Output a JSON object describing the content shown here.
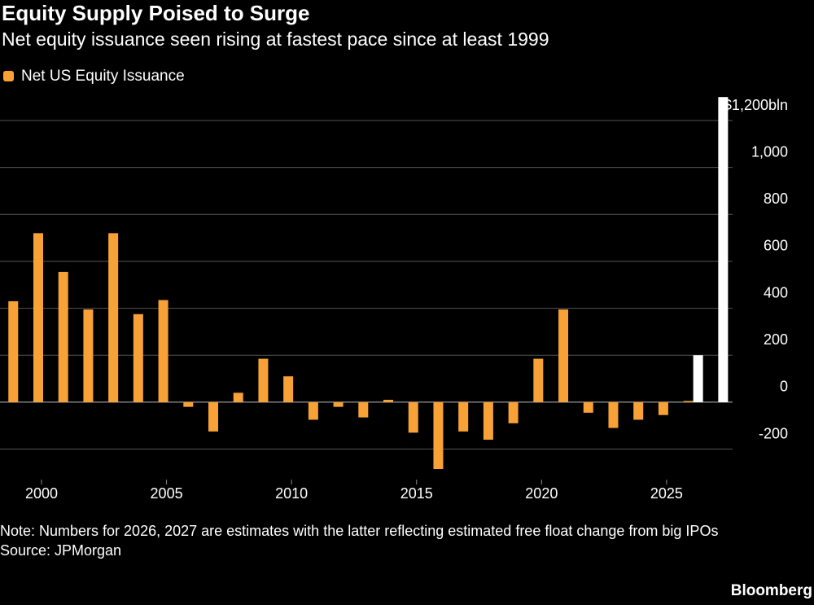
{
  "chart_data": {
    "type": "bar",
    "title": "Equity Supply Poised to Surge",
    "subtitle": "Net equity issuance seen rising at fastest pace since at least 1999",
    "x": [
      1999,
      2000,
      2001,
      2002,
      2003,
      2004,
      2005,
      2006,
      2007,
      2008,
      2009,
      2010,
      2011,
      2012,
      2013,
      2014,
      2015,
      2016,
      2017,
      2018,
      2019,
      2020,
      2021,
      2022,
      2023,
      2024,
      2025,
      2026,
      2027
    ],
    "series": [
      {
        "name": "Net US Equity Issuance",
        "color": "#f7a136",
        "values": [
          430,
          720,
          555,
          395,
          720,
          375,
          435,
          -20,
          -125,
          40,
          185,
          110,
          -75,
          -20,
          -65,
          10,
          -130,
          -285,
          -125,
          -160,
          -90,
          185,
          395,
          -45,
          -110,
          -75,
          -55,
          5,
          null
        ]
      },
      {
        "color": "#ffffff",
        "values": [
          null,
          null,
          null,
          null,
          null,
          null,
          null,
          null,
          null,
          null,
          null,
          null,
          null,
          null,
          null,
          null,
          null,
          null,
          null,
          null,
          null,
          null,
          null,
          null,
          null,
          null,
          null,
          200,
          1300
        ]
      }
    ],
    "xlim": [
      1998.34,
      2027.64
    ],
    "xticks": [
      2000,
      2005,
      2010,
      2015,
      2020,
      2025
    ],
    "ylim": [
      -330,
      1310
    ],
    "yticks": [
      -200,
      0,
      200,
      400,
      600,
      800,
      {
        "value": 1000,
        "label": "1,000"
      },
      {
        "value": 1200,
        "label": "$1,200bln"
      }
    ],
    "grid": true,
    "note": "Note: Numbers for 2026, 2027 are estimates with the latter reflecting estimated free float change from big IPOs",
    "source": "Source: JPMorgan",
    "brand": "Bloomberg"
  }
}
